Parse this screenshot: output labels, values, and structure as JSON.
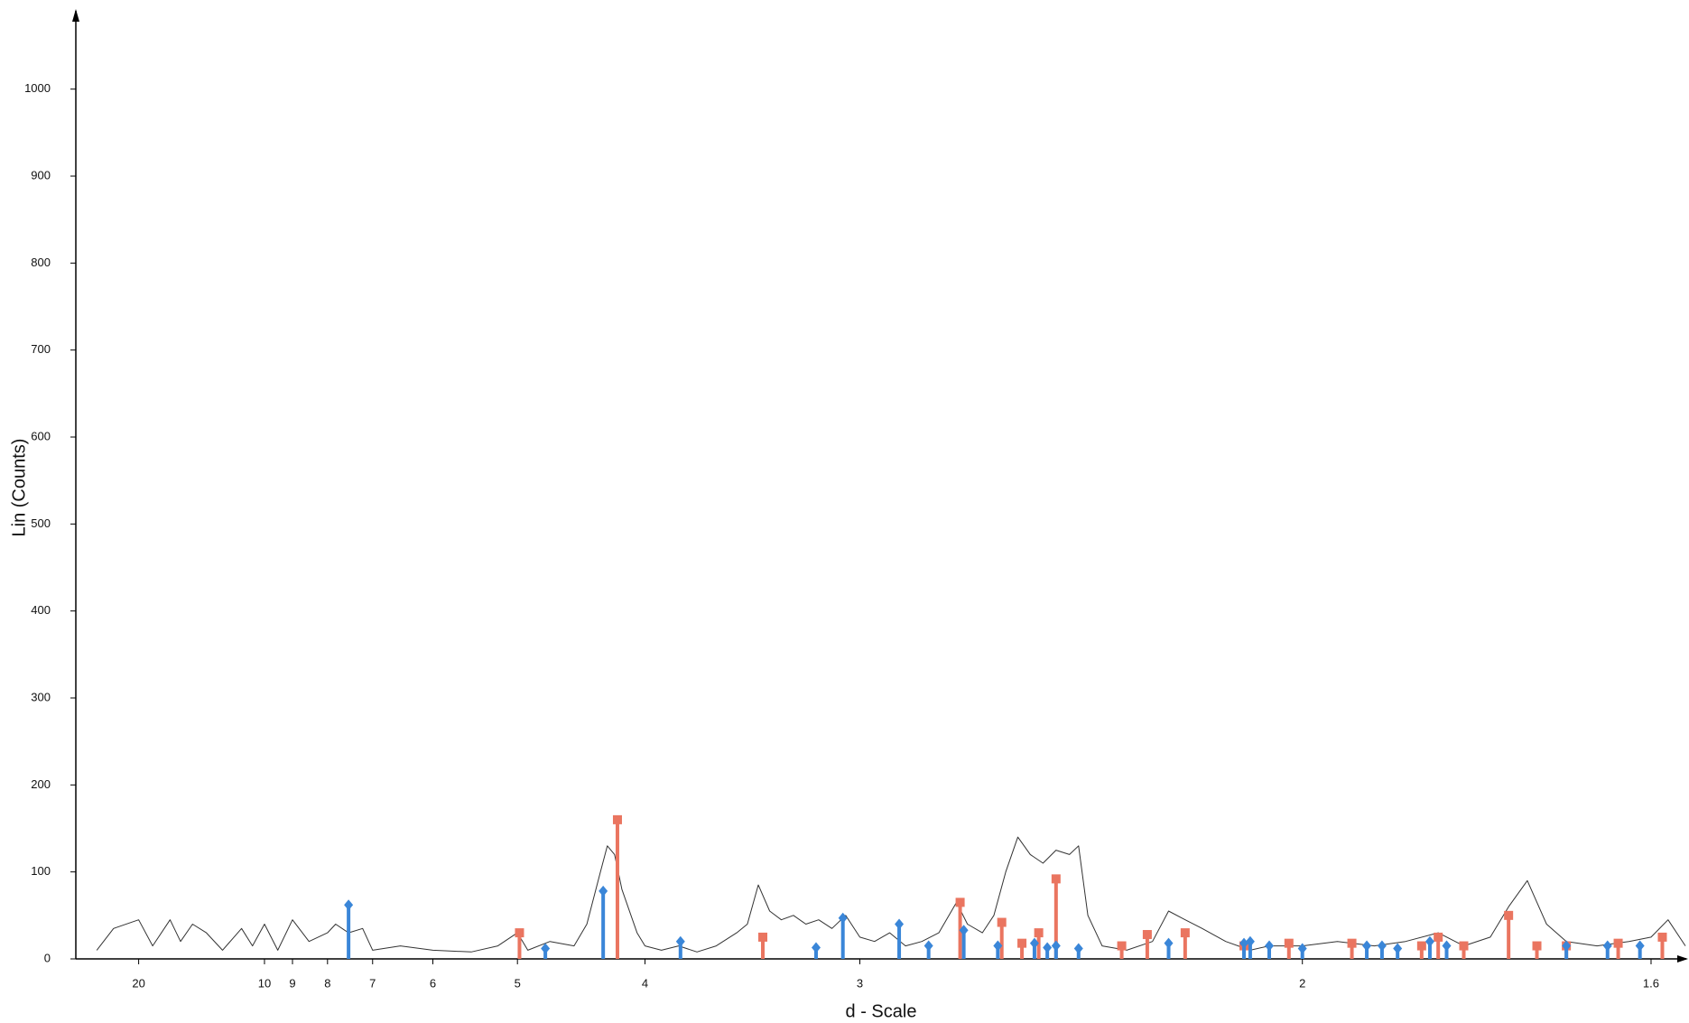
{
  "chart_data": {
    "type": "line",
    "x_label": "d - Scale",
    "y_label": "Lin (Counts)",
    "xlim": [
      40,
      1.57
    ],
    "ylim": [
      0,
      1090
    ],
    "xticks": [
      20,
      10,
      9,
      8,
      7,
      6,
      5,
      4,
      3,
      2,
      1.6
    ],
    "yticks": [
      0,
      100,
      200,
      300,
      400,
      500,
      600,
      700,
      800,
      900,
      1000
    ],
    "series": [
      {
        "color": "#333333",
        "x": [
          30,
          25,
          20,
          18,
          16,
          15,
          14,
          13,
          12,
          11,
          10.5,
          10,
          9.5,
          9,
          8.5,
          8,
          7.8,
          7.5,
          7.2,
          7,
          6.5,
          6,
          5.5,
          5.2,
          5,
          4.9,
          4.7,
          4.5,
          4.4,
          4.3,
          4.25,
          4.2,
          4.15,
          4.05,
          4,
          3.9,
          3.8,
          3.7,
          3.6,
          3.5,
          3.45,
          3.4,
          3.35,
          3.3,
          3.25,
          3.2,
          3.15,
          3.1,
          3.05,
          3,
          2.95,
          2.9,
          2.85,
          2.8,
          2.75,
          2.7,
          2.67,
          2.63,
          2.6,
          2.57,
          2.54,
          2.51,
          2.48,
          2.45,
          2.42,
          2.4,
          2.38,
          2.35,
          2.3,
          2.25,
          2.22,
          2.19,
          2.16,
          2.12,
          2.08,
          2.05,
          2,
          1.95,
          1.9,
          1.86,
          1.82,
          1.79,
          1.76,
          1.74,
          1.72,
          1.7,
          1.68,
          1.65,
          1.62,
          1.6,
          1.585,
          1.57
        ],
        "values": [
          10,
          35,
          45,
          15,
          45,
          20,
          40,
          30,
          10,
          35,
          15,
          40,
          10,
          45,
          20,
          30,
          40,
          30,
          35,
          10,
          15,
          10,
          8,
          15,
          30,
          10,
          20,
          15,
          40,
          100,
          130,
          120,
          80,
          30,
          15,
          10,
          15,
          8,
          15,
          30,
          40,
          85,
          55,
          45,
          50,
          40,
          45,
          35,
          50,
          25,
          20,
          30,
          15,
          20,
          30,
          65,
          40,
          30,
          50,
          100,
          140,
          120,
          110,
          125,
          120,
          130,
          50,
          15,
          10,
          20,
          55,
          45,
          35,
          20,
          10,
          15,
          15,
          20,
          15,
          20,
          30,
          15,
          25,
          60,
          90,
          40,
          20,
          15,
          20,
          25,
          45,
          15
        ]
      }
    ],
    "sticks": [
      {
        "color": "#ea7560",
        "marker": "square",
        "x": [
          4.98,
          4.18,
          3.38,
          2.69,
          2.58,
          2.53,
          2.49,
          2.45,
          2.31,
          2.26,
          2.19,
          2.09,
          2.02,
          1.93,
          1.84,
          1.82,
          1.79,
          1.74,
          1.71,
          1.68,
          1.63,
          1.59
        ],
        "values": [
          30,
          160,
          25,
          65,
          42,
          18,
          30,
          92,
          15,
          28,
          30,
          15,
          18,
          18,
          15,
          25,
          15,
          50,
          15,
          15,
          18,
          25
        ]
      },
      {
        "color": "#3a86d8",
        "marker": "diamond",
        "x": [
          7.5,
          4.74,
          4.28,
          3.79,
          3.16,
          3.06,
          2.87,
          2.78,
          2.68,
          2.59,
          2.5,
          2.47,
          2.45,
          2.4,
          2.22,
          2.09,
          2.08,
          2.05,
          2,
          1.91,
          1.89,
          1.87,
          1.83,
          1.81,
          1.68,
          1.64,
          1.61
        ],
        "values": [
          62,
          12,
          78,
          20,
          13,
          47,
          40,
          15,
          33,
          15,
          18,
          13,
          15,
          12,
          18,
          18,
          20,
          15,
          12,
          15,
          15,
          12,
          20,
          15,
          15,
          15,
          15
        ]
      }
    ]
  }
}
